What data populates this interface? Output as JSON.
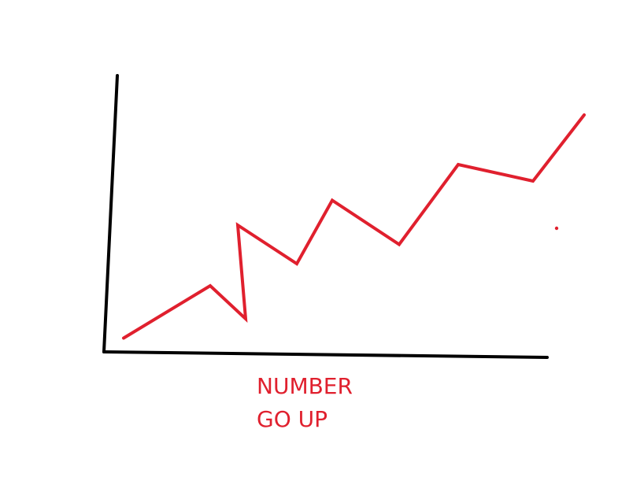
{
  "colors": {
    "axis": "#000000",
    "series": "#e0202e",
    "text": "#e0202e",
    "background": "#ffffff"
  },
  "caption": {
    "line1": "NUMBER",
    "line2": "GO UP"
  },
  "chart_data": {
    "type": "line",
    "title": "",
    "xlabel": "",
    "ylabel": "",
    "grid": false,
    "legend": "none",
    "xlim": [
      0,
      14
    ],
    "ylim": [
      0,
      10
    ],
    "series": [
      {
        "x": [
          0.5,
          2.7,
          3.6,
          3.4,
          4.9,
          5.8,
          7.5,
          9.0,
          10.9,
          12.2
        ],
        "y": [
          0.5,
          2.4,
          1.2,
          4.6,
          3.2,
          5.5,
          3.9,
          6.8,
          6.2,
          8.6
        ]
      }
    ]
  }
}
